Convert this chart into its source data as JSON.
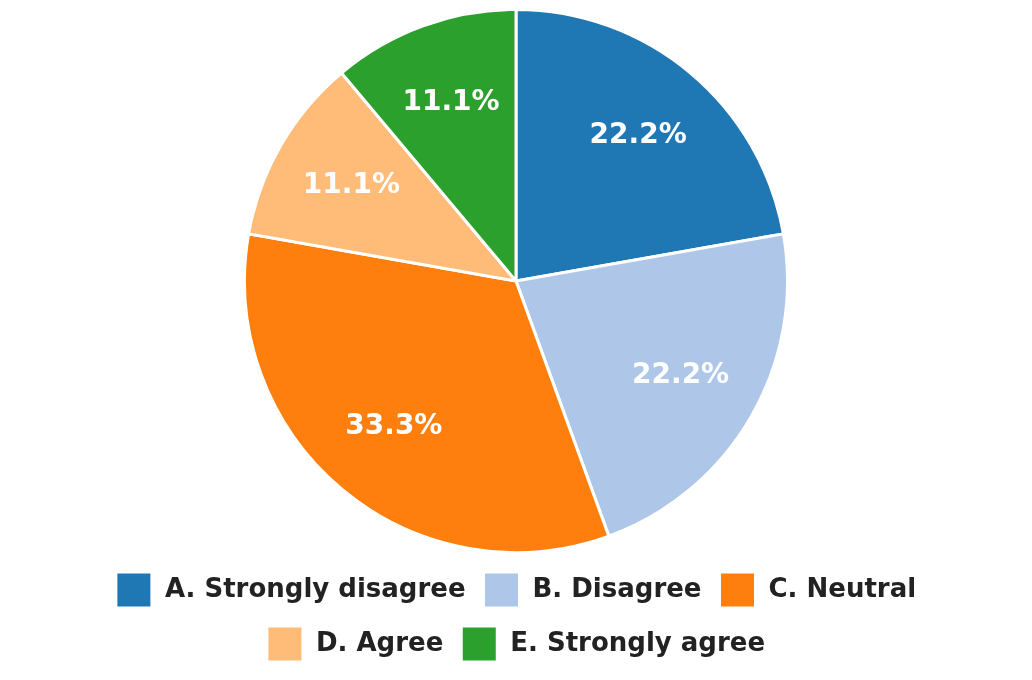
{
  "chart_data": {
    "type": "pie",
    "categories": [
      "A. Strongly disagree",
      "B. Disagree",
      "C. Neutral",
      "D. Agree",
      "E. Strongly agree"
    ],
    "values": [
      22.2,
      22.2,
      33.3,
      11.1,
      11.1
    ],
    "colors": [
      "#1f77b4",
      "#aec7e8",
      "#ff7f0e",
      "#ffbb78",
      "#2ca02c"
    ],
    "value_labels": [
      "22.2%",
      "22.2%",
      "33.3%",
      "11.1%",
      "11.1%"
    ],
    "legend": "bottom"
  }
}
